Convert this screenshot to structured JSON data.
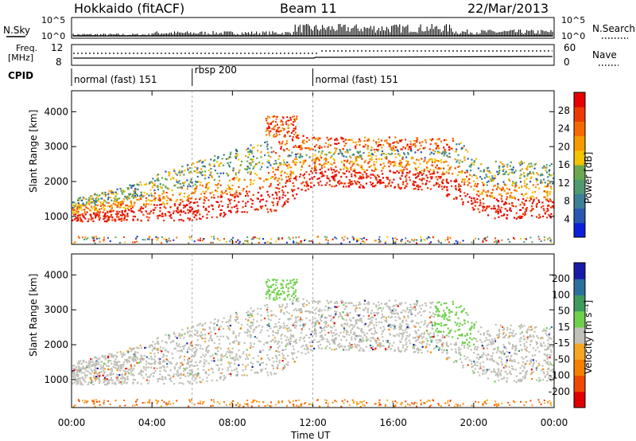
{
  "header": {
    "station": "Hokkaido (fitACF)",
    "beam": "Beam 11",
    "date": "22/Mar/2013"
  },
  "top_panels": {
    "nsky_label": "N.Sky",
    "nsearch_label": "N.Search",
    "nsky_ticks": [
      "10^5",
      "10^0"
    ],
    "nsearch_ticks": [
      "10^5",
      "10^0"
    ],
    "freq_label_1": "Freq.",
    "freq_label_2": "[MHz]",
    "freq_ticks": [
      "12",
      "8"
    ],
    "nave_label": "Nave",
    "nave_ticks": [
      "60",
      "0"
    ],
    "cpid_label": "CPID",
    "cpid_segments": [
      {
        "label": "normal (fast) 151",
        "start_hr": 0,
        "end_hr": 6
      },
      {
        "label": "rbsp 200",
        "start_hr": 6,
        "end_hr": 12
      },
      {
        "label": "normal (fast) 151",
        "start_hr": 12,
        "end_hr": 24
      }
    ]
  },
  "chart_data": [
    {
      "type": "heatmap",
      "ylabel": "Slant Range [km]",
      "ylim": [
        200,
        4600
      ],
      "xlim": [
        0,
        24
      ],
      "yticks": [
        "1000",
        "2000",
        "3000",
        "4000"
      ],
      "colorbar": {
        "label": "Power [dB]",
        "ticks": [
          "4",
          "8",
          "12",
          "16",
          "20",
          "24",
          "28"
        ],
        "colors": [
          "#0b1fd9",
          "#2a58b0",
          "#3c7f96",
          "#4f9a6e",
          "#6aa84f",
          "#f2c400",
          "#f79a00",
          "#f56a00",
          "#ee3a00",
          "#e60000"
        ]
      }
    },
    {
      "type": "heatmap",
      "ylabel": "Slant Range [km]",
      "ylim": [
        200,
        4600
      ],
      "xlim": [
        0,
        24
      ],
      "yticks": [
        "1000",
        "2000",
        "3000",
        "4000"
      ],
      "colorbar": {
        "label": "Velocity [m s⁻¹]",
        "ticks": [
          "200",
          "100",
          "50",
          "15",
          "-15",
          "-50",
          "-100",
          "-200"
        ],
        "colors": [
          "#1a1aa8",
          "#2b6f9e",
          "#3f9a60",
          "#6fd04b",
          "#c0c0b8",
          "#f5a623",
          "#f57f00",
          "#ef4a00",
          "#e00000"
        ]
      }
    }
  ],
  "xaxis": {
    "ticks": [
      "00:00",
      "04:00",
      "08:00",
      "12:00",
      "16:00",
      "20:00",
      "00:00"
    ],
    "label": "Time UT"
  }
}
